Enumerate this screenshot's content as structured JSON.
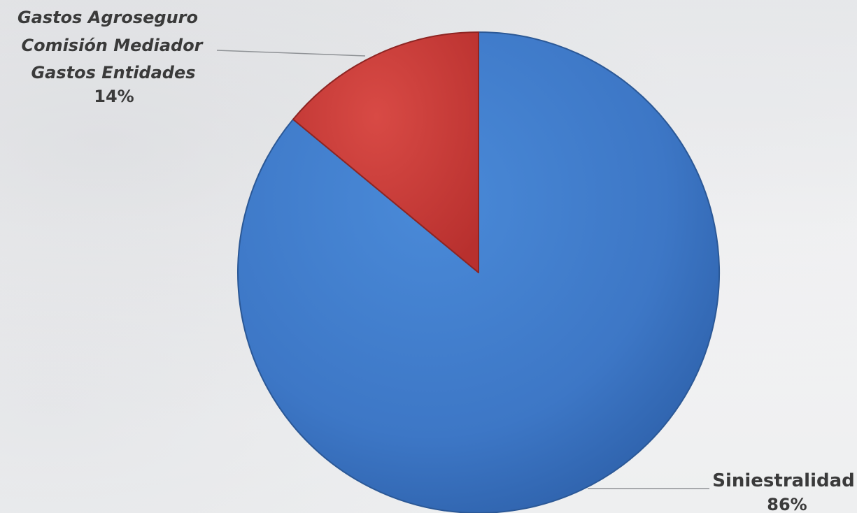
{
  "chart_data": {
    "type": "pie",
    "slices": [
      {
        "label": "Siniestralidad",
        "value": 86,
        "value_label": "86%",
        "color": "#3f7ccd"
      },
      {
        "label_lines": [
          "Gastos Agroseguro",
          "Comisión Mediador",
          "Gastos Entidades"
        ],
        "value": 14,
        "value_label": "14%",
        "color": "#c63c39"
      }
    ],
    "start": "12 o'clock",
    "direction": "clockwise",
    "legend": "none"
  }
}
